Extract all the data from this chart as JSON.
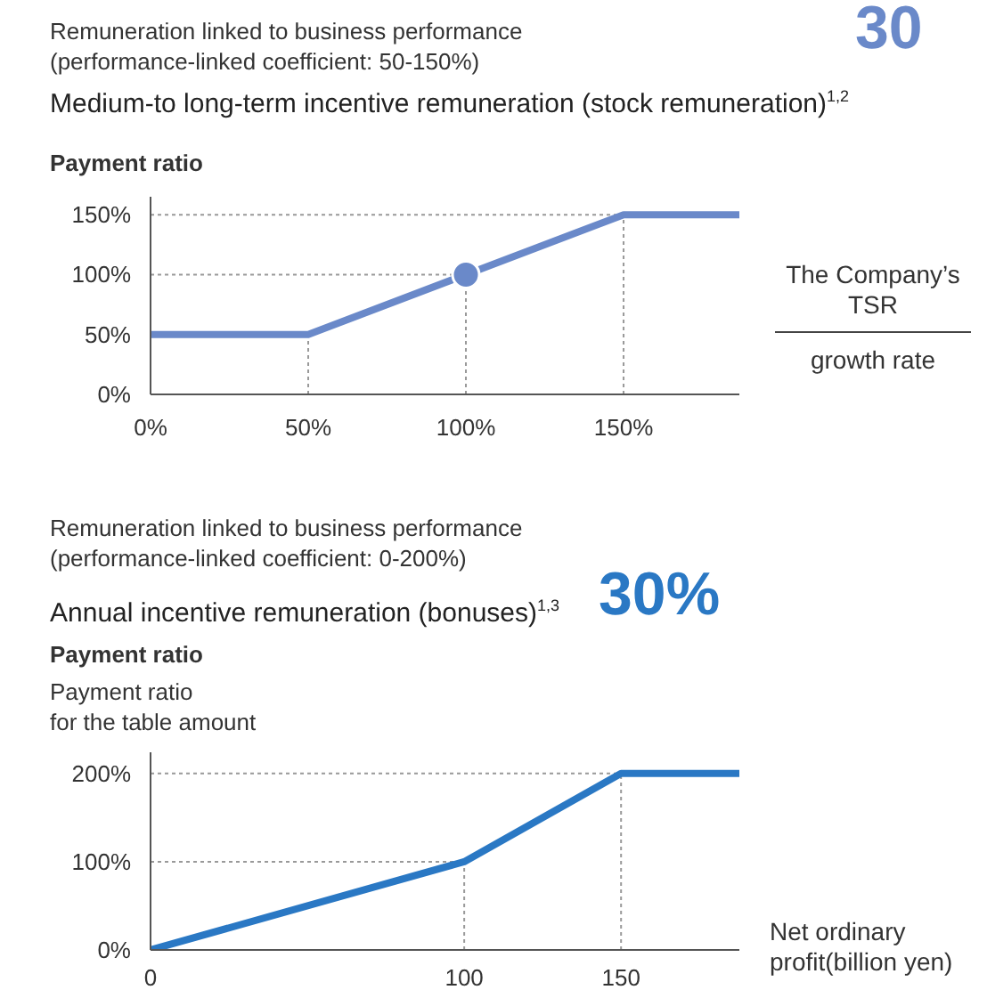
{
  "chart_data": [
    {
      "type": "line",
      "subtitle": "Remuneration linked to business performance\n(performance-linked coefficient: 50-150%)",
      "title": "Medium-to long-term incentive remuneration (stock remuneration)$^{1,2}$",
      "ylabel": "Payment ratio",
      "xlabel": "The Company’s TSR\ngrowth rate",
      "annotations": [
        "30"
      ],
      "xlim": [
        0,
        187
      ],
      "xticks": [
        {
          "value": 0,
          "label": "0%"
        },
        {
          "value": 50,
          "label": "50%"
        },
        {
          "value": 100,
          "label": "100%"
        },
        {
          "value": 150,
          "label": "150%"
        }
      ],
      "ylim": [
        0,
        165
      ],
      "yticks": [
        {
          "value": 0,
          "label": "0%"
        },
        {
          "value": 50,
          "label": "50%"
        },
        {
          "value": 100,
          "label": "100%"
        },
        {
          "value": 150,
          "label": "150%"
        }
      ],
      "series": [
        {
          "color": "#6a89c9",
          "x": [
            0,
            50,
            100,
            150,
            187
          ],
          "values": [
            50,
            50,
            100,
            150,
            150
          ],
          "line_style": "solid"
        },
        {
          "type": "scatter",
          "color": "#6a89c9",
          "x": [
            100
          ],
          "values": [
            100
          ],
          "marker": "circle"
        }
      ],
      "ref_lines": [
        {
          "axis": "x",
          "value": 50,
          "line_style": "dotted",
          "color": "#999999"
        },
        {
          "axis": "x",
          "value": 100,
          "line_style": "dotted",
          "color": "#999999"
        },
        {
          "axis": "x",
          "value": 150,
          "line_style": "dotted",
          "color": "#999999"
        },
        {
          "axis": "y",
          "value": 100,
          "line_style": "dotted",
          "color": "#999999"
        },
        {
          "axis": "y",
          "value": 150,
          "line_style": "dotted",
          "color": "#999999"
        }
      ]
    },
    {
      "type": "line",
      "subtitle": "Remuneration linked to business performance\n(performance-linked coefficient: 0-200%)",
      "title": "Annual incentive remuneration (bonuses)$^{1,3}$",
      "ylabel": "Payment ratio\nfor the table amount",
      "xlabel": "Net ordinary\nprofit(billion yen)",
      "annotations": [
        "30%",
        "Payment ratio"
      ],
      "xlim": [
        0,
        188
      ],
      "xticks": [
        0,
        100,
        150
      ],
      "ylim": [
        0,
        224
      ],
      "yticks": [
        {
          "value": 0,
          "label": "0%"
        },
        {
          "value": 100,
          "label": "100%"
        },
        {
          "value": 200,
          "label": "200%"
        }
      ],
      "series": [
        {
          "color": "#2a78c4",
          "x": [
            0,
            100,
            150,
            188
          ],
          "values": [
            0,
            100,
            200,
            200
          ],
          "line_style": "solid"
        }
      ],
      "ref_lines": [
        {
          "axis": "x",
          "value": 100,
          "line_style": "dotted",
          "color": "#999999"
        },
        {
          "axis": "x",
          "value": 150,
          "line_style": "dotted",
          "color": "#999999"
        },
        {
          "axis": "y",
          "value": 100,
          "line_style": "dotted",
          "color": "#999999"
        },
        {
          "axis": "y",
          "value": 200,
          "line_style": "dotted",
          "color": "#999999"
        }
      ]
    }
  ]
}
